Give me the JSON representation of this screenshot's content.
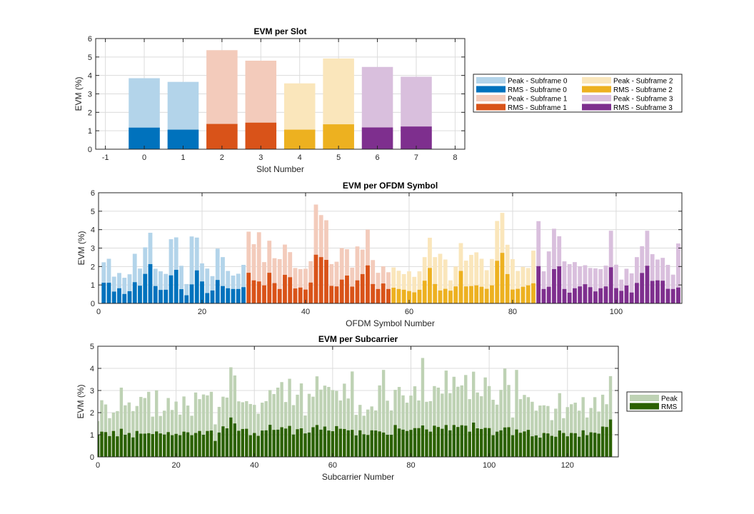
{
  "chart_data": [
    {
      "id": "slot",
      "type": "bar",
      "title": "EVM per Slot",
      "xlabel": "Slot Number",
      "ylabel": "EVM (%)",
      "xlim": [
        -1.25,
        8.25
      ],
      "ylim": [
        0,
        6
      ],
      "xticks": [
        -1,
        0,
        1,
        2,
        3,
        4,
        5,
        6,
        7,
        8
      ],
      "yticks": [
        0,
        1,
        2,
        3,
        4,
        5,
        6
      ],
      "grid": true,
      "legend_position": "right",
      "x": [
        0,
        1,
        2,
        3,
        4,
        5,
        6,
        7
      ],
      "group": [
        0,
        0,
        1,
        1,
        2,
        2,
        3,
        3
      ],
      "series": [
        {
          "name": "Peak",
          "values": [
            3.85,
            3.65,
            5.37,
            4.8,
            3.57,
            4.92,
            4.46,
            3.93
          ]
        },
        {
          "name": "RMS",
          "values": [
            1.17,
            1.06,
            1.37,
            1.44,
            1.06,
            1.35,
            1.18,
            1.23
          ]
        }
      ],
      "legend": [
        {
          "label": "Peak - Subframe 0",
          "color": "#b3d4ea"
        },
        {
          "label": "RMS - Subframe 0",
          "color": "#0072bd"
        },
        {
          "label": "Peak - Subframe 1",
          "color": "#f3cbbb"
        },
        {
          "label": "RMS - Subframe 1",
          "color": "#d95319"
        },
        {
          "label": "Peak - Subframe 2",
          "color": "#fae6bb"
        },
        {
          "label": "RMS - Subframe 2",
          "color": "#edb120"
        },
        {
          "label": "Peak - Subframe 3",
          "color": "#d9bfdd"
        },
        {
          "label": "RMS - Subframe 3",
          "color": "#7e2f8e"
        }
      ]
    },
    {
      "id": "symbol",
      "type": "bar",
      "title": "EVM per OFDM Symbol",
      "xlabel": "OFDM Symbol Number",
      "ylabel": "EVM (%)",
      "xlim": [
        0,
        112.7
      ],
      "ylim": [
        0,
        6
      ],
      "xticks": [
        0,
        20,
        40,
        60,
        80,
        100
      ],
      "yticks": [
        0,
        1,
        2,
        3,
        4,
        5,
        6
      ],
      "grid": true,
      "x_start": 1,
      "symbols_per_subframe": 28,
      "series": [
        {
          "name": "Peak",
          "values": [
            2.23,
            2.42,
            1.45,
            1.65,
            1.39,
            1.58,
            2.69,
            1.89,
            3.04,
            3.83,
            1.88,
            1.74,
            1.6,
            3.48,
            3.58,
            2.04,
            1.05,
            3.63,
            3.57,
            2.17,
            1.89,
            1.48,
            2.97,
            2.51,
            1.76,
            1.51,
            1.61,
            2.09,
            3.89,
            3.21,
            3.86,
            2.24,
            3.4,
            2.45,
            2.4,
            3.19,
            2.78,
            1.92,
            1.86,
            1.88,
            2.29,
            5.36,
            4.79,
            4.51,
            2.13,
            2.26,
            3.0,
            2.94,
            1.94,
            3.09,
            2.92,
            4.0,
            2.35,
            1.66,
            2.01,
            1.69,
            1.95,
            1.77,
            1.59,
            1.74,
            1.44,
            1.74,
            2.51,
            3.56,
            2.51,
            2.69,
            2.38,
            1.25,
            2.0,
            3.27,
            2.32,
            2.63,
            2.77,
            2.42,
            1.8,
            2.41,
            4.47,
            4.91,
            3.18,
            2.4,
            1.76,
            1.98,
            1.92,
            2.86,
            4.46,
            1.74,
            2.82,
            4.05,
            3.64,
            2.28,
            2.13,
            2.24,
            2.01,
            2.07,
            1.92,
            1.9,
            1.86,
            2.05,
            3.94,
            2.1,
            1.29,
            1.88,
            1.63,
            2.51,
            3.1,
            3.94,
            2.67,
            2.38,
            2.47,
            2.09,
            1.56,
            3.25
          ]
        },
        {
          "name": "RMS",
          "values": [
            1.12,
            1.12,
            0.64,
            0.82,
            0.51,
            0.66,
            1.15,
            0.96,
            1.6,
            2.13,
            0.94,
            0.73,
            0.74,
            1.52,
            1.82,
            0.77,
            0.44,
            1.03,
            1.79,
            1.19,
            0.56,
            0.7,
            1.27,
            0.94,
            0.82,
            0.78,
            0.78,
            0.88,
            1.66,
            1.25,
            1.19,
            0.98,
            1.66,
            1.1,
            0.78,
            1.55,
            1.42,
            0.81,
            0.86,
            0.75,
            1.13,
            2.64,
            2.51,
            2.36,
            0.95,
            0.92,
            1.29,
            1.51,
            0.91,
            1.25,
            1.59,
            2.06,
            1.05,
            0.78,
            1.08,
            0.78,
            0.85,
            0.78,
            0.74,
            0.67,
            0.6,
            0.74,
            1.23,
            1.92,
            1.05,
            0.7,
            0.79,
            0.69,
            0.92,
            1.76,
            0.92,
            0.94,
            0.98,
            0.9,
            0.79,
            0.98,
            2.31,
            2.74,
            1.59,
            0.75,
            0.79,
            0.9,
            0.98,
            1.09,
            2.02,
            0.78,
            0.9,
            1.86,
            2.01,
            0.78,
            0.58,
            0.82,
            0.92,
            1.04,
            0.88,
            0.65,
            0.82,
            0.92,
            1.96,
            0.83,
            0.68,
            0.97,
            0.59,
            1.11,
            1.65,
            2.04,
            1.22,
            1.25,
            1.23,
            0.79,
            0.78,
            0.86
          ]
        }
      ],
      "subframe_colors": [
        {
          "peak": "#b3d4ea",
          "rms": "#0072bd"
        },
        {
          "peak": "#f3cbbb",
          "rms": "#d95319"
        },
        {
          "peak": "#fae6bb",
          "rms": "#edb120"
        },
        {
          "peak": "#d9bfdd",
          "rms": "#7e2f8e"
        }
      ]
    },
    {
      "id": "subcarrier",
      "type": "bar",
      "title": "EVM per Subcarrier",
      "xlabel": "Subcarrier Number",
      "ylabel": "EVM (%)",
      "xlim": [
        0,
        133
      ],
      "ylim": [
        0,
        5
      ],
      "xticks": [
        0,
        20,
        40,
        60,
        80,
        100,
        120
      ],
      "yticks": [
        0,
        1,
        2,
        3,
        4,
        5
      ],
      "grid": true,
      "legend_position": "right",
      "x_start": 0,
      "series": [
        {
          "name": "Peak",
          "color": "#bed2b4",
          "values": [
            1.62,
            2.56,
            2.37,
            1.75,
            2.0,
            2.07,
            3.13,
            2.33,
            2.46,
            2.07,
            2.3,
            2.71,
            2.66,
            2.94,
            1.82,
            3.01,
            1.85,
            2.09,
            2.66,
            2.12,
            2.5,
            1.91,
            2.73,
            2.32,
            1.86,
            2.91,
            2.61,
            2.82,
            2.78,
            2.94,
            1.47,
            2.26,
            2.72,
            2.68,
            4.05,
            3.68,
            2.51,
            2.47,
            2.52,
            2.39,
            2.35,
            1.95,
            2.45,
            2.52,
            3.02,
            2.84,
            3.13,
            3.38,
            2.48,
            3.53,
            2.34,
            2.81,
            3.32,
            1.87,
            2.85,
            2.72,
            3.64,
            3.04,
            3.22,
            3.16,
            3.02,
            2.98,
            2.55,
            3.31,
            2.64,
            3.86,
            1.9,
            2.35,
            1.86,
            2.14,
            2.28,
            2.1,
            3.23,
            3.93,
            2.54,
            2.1,
            3.03,
            3.16,
            2.78,
            2.45,
            2.77,
            3.19,
            2.55,
            4.47,
            2.49,
            2.52,
            3.2,
            3.13,
            2.86,
            3.9,
            2.88,
            3.62,
            3.17,
            3.23,
            3.7,
            2.61,
            3.85,
            2.91,
            2.74,
            3.59,
            3.2,
            2.58,
            2.36,
            3.03,
            3.99,
            3.25,
            1.78,
            3.93,
            2.61,
            2.8,
            2.7,
            2.49,
            2.09,
            2.32,
            2.33,
            2.3,
            1.66,
            2.18,
            2.88,
            1.75,
            2.25,
            2.38,
            2.45,
            2.09,
            2.7,
            1.78,
            2.21,
            2.7,
            2.05,
            2.81,
            2.38,
            3.65
          ]
        },
        {
          "name": "RMS",
          "color": "#2b6100",
          "values": [
            1.0,
            1.14,
            1.12,
            0.94,
            1.17,
            0.93,
            1.27,
            1.0,
            1.08,
            0.88,
            1.17,
            1.05,
            1.05,
            1.07,
            1.03,
            1.15,
            1.06,
            1.01,
            1.12,
            0.98,
            1.04,
            0.98,
            1.14,
            1.11,
            0.98,
            1.08,
            1.17,
            1.0,
            1.17,
            1.19,
            0.72,
            1.1,
            1.38,
            1.29,
            1.78,
            1.51,
            1.18,
            1.26,
            1.27,
            0.98,
            1.08,
            0.95,
            1.19,
            1.2,
            1.45,
            1.22,
            1.23,
            1.34,
            1.28,
            1.4,
            1.01,
            1.25,
            1.29,
            1.06,
            1.1,
            1.34,
            1.44,
            1.23,
            1.37,
            1.19,
            1.16,
            1.39,
            1.27,
            1.26,
            1.2,
            1.22,
            0.97,
            1.2,
            1.02,
            0.99,
            1.2,
            1.19,
            1.15,
            1.1,
            1.0,
            1.0,
            1.44,
            1.28,
            1.23,
            1.17,
            1.22,
            1.3,
            1.3,
            1.42,
            1.24,
            1.14,
            1.41,
            1.35,
            1.27,
            1.44,
            1.2,
            1.44,
            1.35,
            1.43,
            1.41,
            1.14,
            1.55,
            1.29,
            1.26,
            1.31,
            1.3,
            0.98,
            1.14,
            1.2,
            1.33,
            1.34,
            0.98,
            1.24,
            1.09,
            1.15,
            1.22,
            0.93,
            0.97,
            0.87,
            1.08,
            1.06,
            0.95,
            0.91,
            1.19,
            1.08,
            0.93,
            1.08,
            1.07,
            0.91,
            1.2,
            0.98,
            1.11,
            1.09,
            1.05,
            1.37,
            1.35,
            1.69
          ]
        }
      ],
      "legend": [
        {
          "label": "Peak",
          "color": "#bed2b4"
        },
        {
          "label": "RMS",
          "color": "#2b6100"
        }
      ]
    }
  ]
}
